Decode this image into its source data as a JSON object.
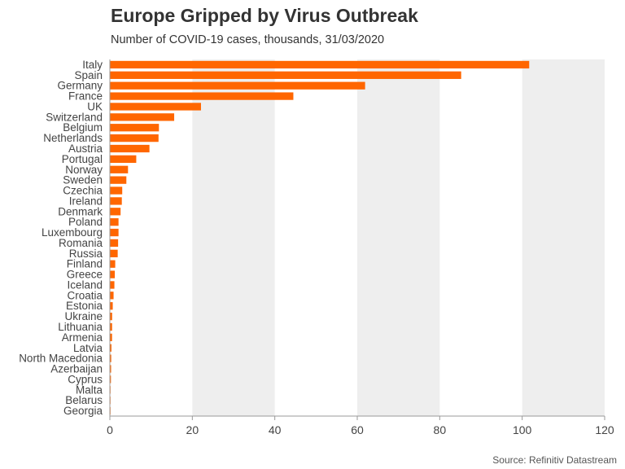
{
  "chart_data": {
    "type": "bar",
    "orientation": "horizontal",
    "title": "Europe Gripped by Virus Outbreak",
    "subtitle": "Number of COVID-19 cases, thousands, 31/03/2020",
    "source": "Source: Refinitiv Datastream",
    "xlabel": "",
    "ylabel": "",
    "xlim": [
      0,
      120
    ],
    "xticks": [
      0,
      20,
      40,
      60,
      80,
      100,
      120
    ],
    "bar_color": "#ff6600",
    "band_color": "#eeeeee",
    "categories": [
      "Italy",
      "Spain",
      "Germany",
      "France",
      "UK",
      "Switzerland",
      "Belgium",
      "Netherlands",
      "Austria",
      "Portugal",
      "Norway",
      "Sweden",
      "Czechia",
      "Ireland",
      "Denmark",
      "Poland",
      "Luxembourg",
      "Romania",
      "Russia",
      "Finland",
      "Greece",
      "Iceland",
      "Croatia",
      "Estonia",
      "Ukraine",
      "Lithuania",
      "Armenia",
      "Latvia",
      "North Macedonia",
      "Azerbaijan",
      "Cyprus",
      "Malta",
      "Belarus",
      "Georgia"
    ],
    "values": [
      101.7,
      85.2,
      61.9,
      44.5,
      22.1,
      15.6,
      11.9,
      11.8,
      9.6,
      6.4,
      4.4,
      4.0,
      3.0,
      2.9,
      2.6,
      2.1,
      2.1,
      2.0,
      1.9,
      1.3,
      1.2,
      1.1,
      0.9,
      0.7,
      0.55,
      0.54,
      0.53,
      0.38,
      0.33,
      0.3,
      0.26,
      0.16,
      0.15,
      0.1
    ]
  }
}
